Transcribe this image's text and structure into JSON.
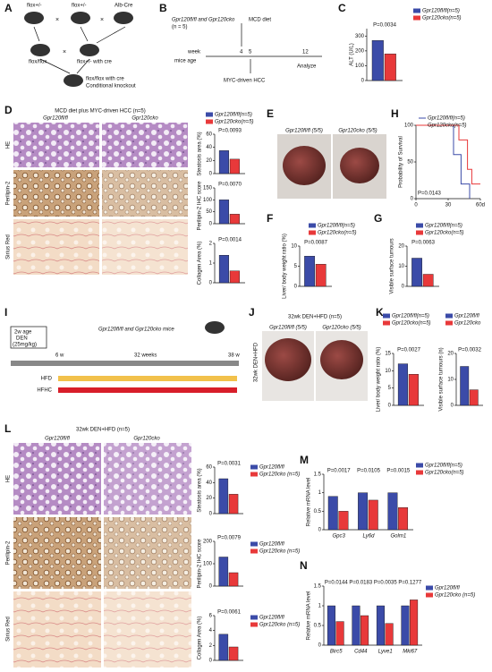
{
  "panels": {
    "A": {
      "label": "A",
      "t1": "flox+/-",
      "t2": "flox+/-",
      "t3": "Alb-Cre",
      "t4": "flox/flox",
      "t5": "flox+/- with cre",
      "t6": "flox/flox with cre",
      "t7": "Conditional knockout",
      "cross": "×"
    },
    "B": {
      "label": "B",
      "t1": "Gpr120fl/fl and Gpr120cko",
      "t2": "(n = 5)",
      "t3": "MCD diet",
      "t4": "week",
      "t5": "mice age",
      "w1": "4",
      "w2": "5",
      "w3": "12",
      "t6": "Analyze",
      "t7": "MYC-driven HCC"
    },
    "C": {
      "label": "C"
    },
    "D": {
      "label": "D",
      "title": "MCD diet plus MYC-driven HCC (n=5)",
      "col1": "Gpr120fl/fl",
      "col2": "Gpr120cko",
      "row1": "HE",
      "row2": "Perilipin-2",
      "row3": "Sirius Red"
    },
    "E": {
      "label": "E",
      "t1": "Gpr120fl/fl (5/5)",
      "t2": "Gpr120cko (5/5)"
    },
    "F": {
      "label": "F"
    },
    "G": {
      "label": "G"
    },
    "H": {
      "label": "H"
    },
    "I": {
      "label": "I",
      "t1": "Gpr120fl/fl and Gpr120cko mice",
      "t2": "2w age",
      "t3": "DEN",
      "t4": "(25mg/kg)",
      "t5": "6 w",
      "t6": "32 weeks",
      "t7": "38 w",
      "t8": "HFD",
      "t9": "HFHC"
    },
    "J": {
      "label": "J",
      "title": "32wk  DEN+HFD (n=5)",
      "t1": "Gpr120fl/fl (5/5)",
      "t2": "Gpr120cko (5/5)",
      "side": "32wk DEN+HFD"
    },
    "K": {
      "label": "K"
    },
    "L": {
      "label": "L",
      "title": "32wk  DEN+HFD (n=5)",
      "col1": "Gpr120fl/fl",
      "col2": "Gpr120cko",
      "row1": "HE",
      "row2": "Perilipin-2",
      "row3": "Sirius Red"
    },
    "M": {
      "label": "M"
    },
    "N": {
      "label": "N"
    }
  },
  "chart_data": [
    {
      "type": "bar",
      "ylabel": "ALT (U/L)",
      "ylim": [
        0,
        350
      ],
      "yticks": [
        0,
        100,
        200,
        300
      ],
      "annotations": [
        "P=0.0034"
      ],
      "series": [
        {
          "name": "Gpr120fl/fl(n=5)",
          "color": "#3b4ba8",
          "values": [
            270
          ]
        },
        {
          "name": "Gpr120cko(n=5)",
          "color": "#e8393a",
          "values": [
            180
          ]
        }
      ]
    },
    {
      "type": "bar",
      "ylabel": "Steatosis area (%)",
      "ylim": [
        0,
        60
      ],
      "yticks": [
        0,
        20,
        40,
        60
      ],
      "annotations": [
        "P=0.0093"
      ],
      "series": [
        {
          "name": "Gpr120fl/fl(n=5)",
          "color": "#3b4ba8",
          "values": [
            35
          ]
        },
        {
          "name": "Gpr120cko(n=5)",
          "color": "#e8393a",
          "values": [
            22
          ]
        }
      ]
    },
    {
      "type": "bar",
      "ylabel": "Perilipin-2 IHC score",
      "ylim": [
        0,
        150
      ],
      "yticks": [
        0,
        50,
        100,
        150
      ],
      "annotations": [
        "P=0.0070"
      ],
      "series": [
        {
          "color": "#3b4ba8",
          "values": [
            100
          ]
        },
        {
          "color": "#e8393a",
          "values": [
            40
          ]
        }
      ]
    },
    {
      "type": "bar",
      "ylabel": "Collagen Area (%)",
      "ylim": [
        0,
        2
      ],
      "yticks": [
        0,
        1,
        2
      ],
      "annotations": [
        "P=0.0014"
      ],
      "series": [
        {
          "color": "#3b4ba8",
          "values": [
            1.4
          ]
        },
        {
          "color": "#e8393a",
          "values": [
            0.6
          ]
        }
      ]
    },
    {
      "type": "bar",
      "ylabel": "Liver/ body weight ratio (%)",
      "ylim": [
        0,
        10
      ],
      "yticks": [
        0,
        5,
        10
      ],
      "annotations": [
        "P=0.0087"
      ],
      "series": [
        {
          "name": "Gpr120fl/fl(n=5)",
          "color": "#3b4ba8",
          "values": [
            7.5
          ]
        },
        {
          "name": "Gpr120cko(n=5)",
          "color": "#e8393a",
          "values": [
            5.5
          ]
        }
      ]
    },
    {
      "type": "bar",
      "ylabel": "Visible surface tumours",
      "ylim": [
        0,
        20
      ],
      "yticks": [
        0,
        10,
        20
      ],
      "annotations": [
        "P=0.0063"
      ],
      "series": [
        {
          "name": "Gpr120fl/fl(n=5)",
          "color": "#3b4ba8",
          "values": [
            14
          ]
        },
        {
          "name": "Gpr120cko(n=5)",
          "color": "#e8393a",
          "values": [
            6
          ]
        }
      ]
    },
    {
      "type": "line",
      "ylabel": "Probability of Survival",
      "xlim": [
        0,
        60
      ],
      "xticks": [
        0,
        30,
        {
          "value": 60,
          "label": "60d"
        }
      ],
      "ylim": [
        0,
        100
      ],
      "yticks": [
        0,
        50,
        100
      ],
      "annotations": [
        "P=0.0143"
      ],
      "series": [
        {
          "name": "Gpr120fl/fl(n=5)",
          "color": "#3b4ba8",
          "x": [
            0,
            35,
            35,
            42,
            42,
            50,
            50
          ],
          "values": [
            100,
            100,
            60,
            60,
            20,
            20,
            0
          ]
        },
        {
          "name": "Gpr120cko(n=5)",
          "color": "#e8393a",
          "x": [
            0,
            40,
            40,
            48,
            48,
            52,
            52,
            60
          ],
          "values": [
            100,
            100,
            80,
            80,
            40,
            40,
            20,
            20
          ]
        }
      ]
    },
    {
      "type": "bar",
      "ylabel": "Liver/ body weight ratio (%)",
      "ylim": [
        0,
        15
      ],
      "yticks": [
        0,
        5,
        10,
        15
      ],
      "annotations": [
        "P=0.0027"
      ],
      "series": [
        {
          "name": "Gpr120fl/fl(n=5)",
          "color": "#3b4ba8",
          "values": [
            12
          ]
        },
        {
          "name": "Gpr120cko(n=5)",
          "color": "#e8393a",
          "values": [
            9
          ]
        }
      ]
    },
    {
      "type": "bar",
      "ylabel": "Visible surface tumours (n)",
      "ylim": [
        0,
        20
      ],
      "yticks": [
        0,
        10,
        20
      ],
      "annotations": [
        "P=0.0032"
      ],
      "series": [
        {
          "name": "Gpr120fl/fl",
          "color": "#3b4ba8",
          "values": [
            15
          ]
        },
        {
          "name": "Gpr120cko",
          "color": "#e8393a",
          "values": [
            6
          ]
        }
      ]
    },
    {
      "type": "bar",
      "ylabel": "Steatosis area (%)",
      "ylim": [
        0,
        60
      ],
      "yticks": [
        0,
        20,
        40,
        60
      ],
      "annotations": [
        "P=0.0031"
      ],
      "series": [
        {
          "name": "Gpr120fl/fl",
          "color": "#3b4ba8",
          "values": [
            45
          ]
        },
        {
          "name": "Gpr120cko (n=5)",
          "color": "#e8393a",
          "values": [
            25
          ]
        }
      ]
    },
    {
      "type": "bar",
      "ylabel": "Perilipin-2 IHC score",
      "ylim": [
        0,
        200
      ],
      "yticks": [
        0,
        100,
        200
      ],
      "annotations": [
        "P=0.0079"
      ],
      "series": [
        {
          "name": "Gpr120fl/fl",
          "color": "#3b4ba8",
          "values": [
            130
          ]
        },
        {
          "name": "Gpr120cko (n=5)",
          "color": "#e8393a",
          "values": [
            60
          ]
        }
      ]
    },
    {
      "type": "bar",
      "ylabel": "Collagen Area (%)",
      "ylim": [
        0,
        6
      ],
      "yticks": [
        0,
        2,
        4,
        6
      ],
      "annotations": [
        "P=0.0061"
      ],
      "series": [
        {
          "name": "Gpr120fl/fl",
          "color": "#3b4ba8",
          "values": [
            3.5
          ]
        },
        {
          "name": "Gpr120cko (n=5)",
          "color": "#e8393a",
          "values": [
            1.8
          ]
        }
      ]
    },
    {
      "type": "bar",
      "ylabel": "Relative mRNA level",
      "ylim": [
        0,
        1.5
      ],
      "yticks": [
        0,
        0.5,
        1,
        1.5
      ],
      "categories": [
        "Gpc3",
        "Ly6d",
        "Golm1"
      ],
      "annotations": [
        "P=0.0017",
        "P=0.0105",
        "P=0.0015"
      ],
      "series": [
        {
          "name": "Gpr120fl/fl(n=5)",
          "color": "#3b4ba8",
          "values": [
            0.9,
            1.0,
            1.0
          ]
        },
        {
          "name": "Gpr120cko(n=5)",
          "color": "#e8393a",
          "values": [
            0.5,
            0.8,
            0.6
          ]
        }
      ]
    },
    {
      "type": "bar",
      "ylabel": "Relative mRNA level",
      "ylim": [
        0,
        1.5
      ],
      "yticks": [
        0,
        0.5,
        1,
        1.5
      ],
      "categories": [
        "Birc5",
        "Cd44",
        "Lyve1",
        "Mki67"
      ],
      "annotations": [
        "P=0.0144",
        "P=0.0183",
        "P=0.0035",
        "P=0.1277"
      ],
      "series": [
        {
          "name": "Gpr120fl/fl",
          "color": "#3b4ba8",
          "values": [
            1.0,
            1.0,
            1.0,
            1.0
          ]
        },
        {
          "name": "Gpr120cko (n=5)",
          "color": "#e8393a",
          "values": [
            0.6,
            0.75,
            0.55,
            1.15
          ]
        }
      ]
    }
  ]
}
